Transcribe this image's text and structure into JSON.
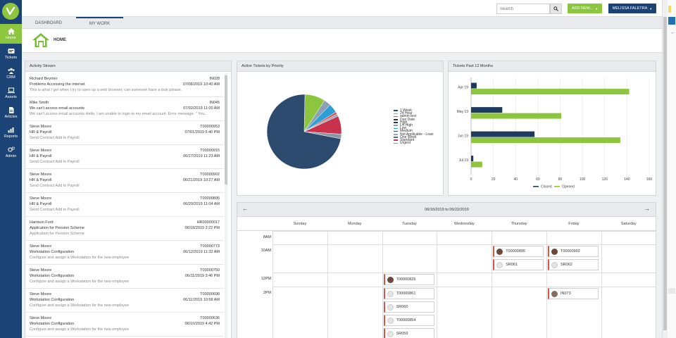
{
  "topbar": {
    "search_placeholder": "Search",
    "add_new_label": "ADD NEW...",
    "user_label": "MELISSA FALETRA"
  },
  "sidebar": {
    "items": [
      {
        "label": "Home",
        "icon": "home-icon",
        "active": true
      },
      {
        "label": "Tickets",
        "icon": "ticket-icon"
      },
      {
        "label": "CRM",
        "icon": "people-icon"
      },
      {
        "label": "Assets",
        "icon": "laptop-icon"
      },
      {
        "label": "Articles",
        "icon": "document-icon"
      },
      {
        "label": "Reports",
        "icon": "bar-chart-icon"
      },
      {
        "label": "Admin",
        "icon": "gears-icon"
      }
    ]
  },
  "tabs": [
    {
      "label": "DASHBOARD"
    },
    {
      "label": "MY WORK",
      "active": true
    }
  ],
  "page_title": "HOME",
  "activity": {
    "title": "Activity Stream",
    "items": [
      {
        "name": "Richard Beymer",
        "id": "IN028",
        "subject": "Problems Accessing the internet",
        "date": "07/08/2019 10:40 AM",
        "detail": "This is what I get when I try to open up a web browser, can someone have a look please."
      },
      {
        "name": "Mike Smith",
        "id": "IN045",
        "subject": "We can't access email accounts",
        "date": "07/02/2019 11:00 AM",
        "detail": "We can't access email accounts Hello, I am unable to login to my email account. Error message: \" You..."
      },
      {
        "name": "Steve Moore",
        "id": "T00000953",
        "subject": "HR & Payroll",
        "date": "07/01/2019 5:40 PM",
        "detail": "Send Contract Add to Payroll"
      },
      {
        "name": "Steve Moore",
        "id": "T00000915",
        "subject": "HR & Payroll",
        "date": "06/27/2019 11:23 AM",
        "detail": "Send Contract Add to Payroll"
      },
      {
        "name": "Steve Moore",
        "id": "T00000902",
        "subject": "HR & Payroll",
        "date": "06/21/2019 10:27 AM",
        "detail": "Send Contract Add to Payroll"
      },
      {
        "name": "Steve Moore",
        "id": "T00000895",
        "subject": "HR & Payroll",
        "date": "06/20/2019 11:04 AM",
        "detail": "Send Contract Add to Payroll"
      },
      {
        "name": "Harrison Ford",
        "id": "HR00000017",
        "subject": "Application for Pension Scheme",
        "date": "06/18/2019 2:22 PM",
        "detail": "Application for Pension Scheme"
      },
      {
        "name": "Steve Moore",
        "id": "T00000773",
        "subject": "Workstation Configuration",
        "date": "06/12/2019 11:32 AM",
        "detail": "Configure and assign a Workstation for the new employee"
      },
      {
        "name": "Steve Moore",
        "id": "T00000750",
        "subject": "Workstation Configuration",
        "date": "06/11/2019 3:46 PM",
        "detail": "Configure and assign a Workstation for the new employee"
      },
      {
        "name": "Steve Moore",
        "id": "T00000698",
        "subject": "Workstation Configuration",
        "date": "06/11/2019 10:58 AM",
        "detail": "Configure and assign a Workstation for the new employee"
      },
      {
        "name": "Steve Moore",
        "id": "T00000636",
        "subject": "Workstation Configuration",
        "date": "06/10/2019 4:42 PM",
        "detail": "Configure and assign a Workstation for the new employee"
      }
    ]
  },
  "chart_data": [
    {
      "type": "pie",
      "title": "Active Tickets by Priority",
      "categories": [
        "1 Week",
        "24 Hour",
        "admin test",
        "Due Date",
        "High",
        "LH High",
        "Low",
        "Medium",
        "Not Applicable - Loan",
        "One Week",
        "Standard",
        "Urgent"
      ],
      "values": [
        0,
        9,
        1,
        0,
        0,
        3,
        4,
        73,
        1,
        0,
        8,
        2
      ],
      "colors": [
        "#1f4e79",
        "#8cc63f",
        "#d9534f",
        "#2b2b2b",
        "#1f3864",
        "#8e9fb3",
        "#2e9fd6",
        "#2c4a6e",
        "#9aa6b5",
        "#5a6a7a",
        "#c8324a",
        "#8a96a3"
      ],
      "legend_position": "right"
    },
    {
      "type": "bar",
      "orientation": "horizontal",
      "title": "Tickets Past 12 Months",
      "categories": [
        "Apr 19",
        "May 19",
        "Jun 19",
        "Jul 19"
      ],
      "series": [
        {
          "name": "Closed",
          "values": [
            5,
            28,
            57,
            2
          ],
          "color": "#1f3a5f"
        },
        {
          "name": "Opened",
          "values": [
            142,
            81,
            134,
            10
          ],
          "color": "#8cc63f"
        }
      ],
      "xlim": [
        0,
        160
      ],
      "xticks": [
        0,
        20,
        40,
        60,
        80,
        100,
        120,
        140,
        160
      ],
      "legend_position": "bottom"
    }
  ],
  "calendar": {
    "range": "06/16/2019 to 06/22/2019",
    "prev": "←",
    "next": "→",
    "days": [
      "Sunday",
      "Monday",
      "Tuesday",
      "Wednesday",
      "Thursday",
      "Friday",
      "Saturday"
    ],
    "times": [
      "8AM",
      "10AM",
      "12PM",
      "2PM"
    ],
    "events": [
      {
        "label": "T00000895",
        "day": 4,
        "time": "10AM",
        "row": 0,
        "avatar": "photo"
      },
      {
        "label": "SR061",
        "day": 4,
        "time": "10AM",
        "row": 1,
        "avatar": "blank"
      },
      {
        "label": "T00000902",
        "day": 5,
        "time": "10AM",
        "row": 0,
        "avatar": "photo"
      },
      {
        "label": "SR062",
        "day": 5,
        "time": "10AM",
        "row": 1,
        "avatar": "blank"
      },
      {
        "label": "T00000826",
        "day": 2,
        "time": "12PM",
        "row": 0,
        "avatar": "photo"
      },
      {
        "label": "T00000861",
        "day": 2,
        "time": "2PM",
        "row": 0,
        "avatar": "blank"
      },
      {
        "label": "SR060",
        "day": 2,
        "time": "2PM",
        "row": 1,
        "avatar": "blank"
      },
      {
        "label": "T00000854",
        "day": 2,
        "time": "2PM",
        "row": 2,
        "avatar": "blank"
      },
      {
        "label": "SR059",
        "day": 2,
        "time": "2PM",
        "row": 3,
        "avatar": "blank"
      },
      {
        "label": "IN073",
        "day": 5,
        "time": "2PM",
        "row": 0,
        "avatar": "photo2"
      }
    ]
  },
  "colors": {
    "brand_navy": "#1b4375",
    "brand_green": "#8cc63f",
    "event_accent": "#d9534f"
  }
}
